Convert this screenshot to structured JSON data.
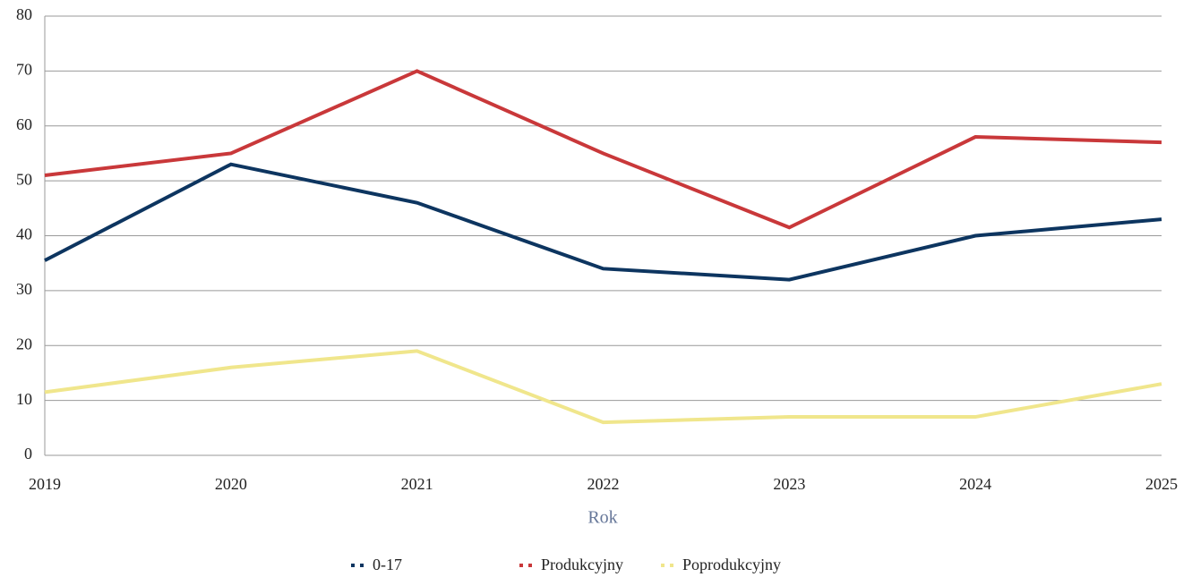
{
  "chart_data": {
    "type": "line",
    "x_label": "Rok",
    "categories": [
      "2019",
      "2020",
      "2021",
      "2022",
      "2023",
      "2024",
      "2025"
    ],
    "series": [
      {
        "name": "0-17",
        "color": "#0d3560",
        "values": [
          35.5,
          53,
          46,
          34,
          32,
          40,
          43
        ]
      },
      {
        "name": "Produkcyjny",
        "color": "#c9383a",
        "values": [
          51,
          55,
          70,
          55,
          41.5,
          58,
          57
        ]
      },
      {
        "name": "Poprodukcyjny",
        "color": "#f0e68c",
        "values": [
          11.5,
          16,
          19,
          6,
          7,
          7,
          13
        ]
      }
    ],
    "ylim": [
      0,
      80
    ],
    "yticks": [
      0,
      10,
      20,
      30,
      40,
      50,
      60,
      70,
      80
    ],
    "grid": true
  }
}
